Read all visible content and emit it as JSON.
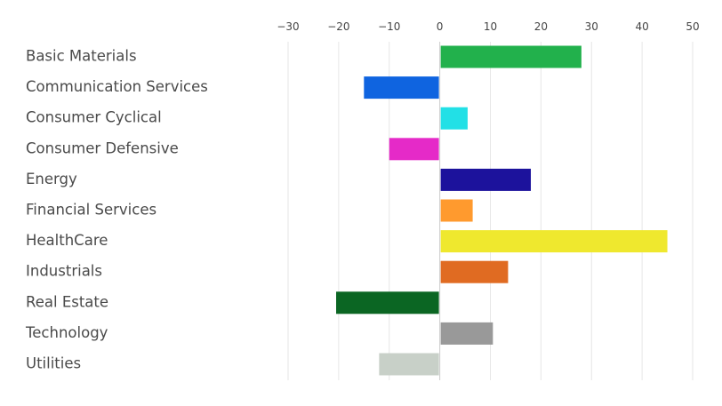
{
  "chart_data": {
    "type": "bar",
    "orientation": "horizontal",
    "title": "",
    "xlabel": "",
    "ylabel": "",
    "xlim": [
      -30,
      50
    ],
    "x_ticks": [
      -30,
      -20,
      -10,
      0,
      10,
      20,
      30,
      40,
      50
    ],
    "x_tick_labels": [
      "−30",
      "−20",
      "−10",
      "0",
      "10",
      "20",
      "30",
      "40",
      "50"
    ],
    "grid": true,
    "legend": "none",
    "categories": [
      "Basic Materials",
      "Communication Services",
      "Consumer Cyclical",
      "Consumer Defensive",
      "Energy",
      "Financial Services",
      "HealthCare",
      "Industrials",
      "Real Estate",
      "Technology",
      "Utilities"
    ],
    "values": [
      28,
      -15,
      5.5,
      -10,
      18,
      6.5,
      45,
      13.5,
      -20.5,
      10.5,
      -12
    ],
    "colors": [
      "#22b14c",
      "#0f64e0",
      "#22e0e6",
      "#e52ac8",
      "#1c129c",
      "#ff9a2e",
      "#efe82e",
      "#e06b22",
      "#0b6623",
      "#999999",
      "#c8d0c8"
    ],
    "grid_color": "#e6e6e6",
    "zero_line_color": "#cccccc"
  }
}
